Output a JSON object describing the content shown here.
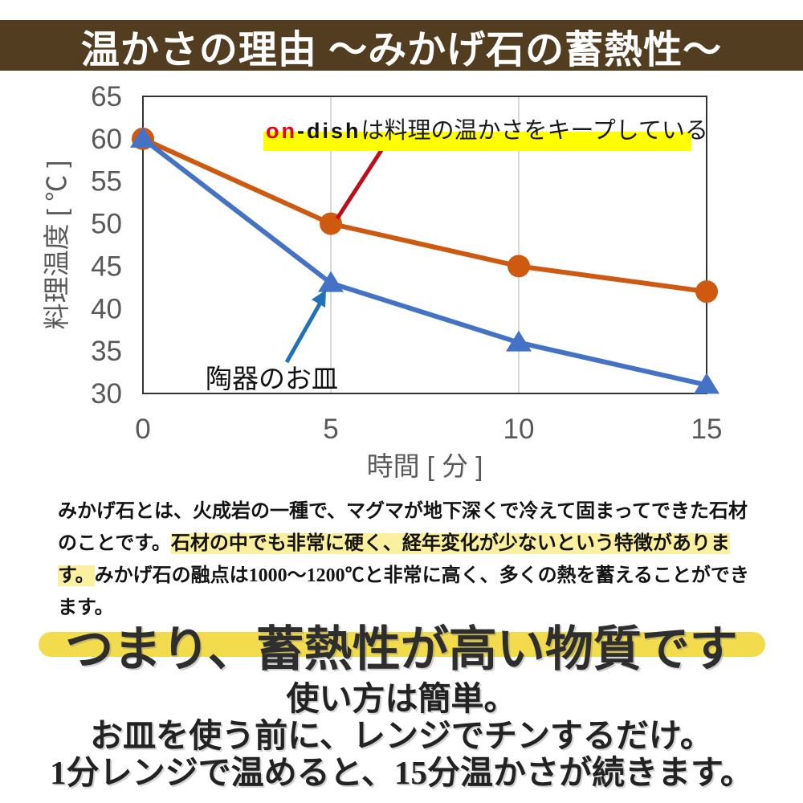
{
  "banner": {
    "title": "温かさの理由 ～みかげ石の蓄熱性～",
    "bg_color": "#533d20",
    "text_color": "#ffffff"
  },
  "chart_data": {
    "type": "line",
    "x": [
      0,
      5,
      10,
      15
    ],
    "series": [
      {
        "name": "on-dish",
        "values": [
          60,
          50,
          45,
          42
        ],
        "color": "#cd5a10",
        "marker": "circle"
      },
      {
        "name": "陶器のお皿",
        "values": [
          60,
          43,
          36,
          31
        ],
        "color": "#4472c4",
        "marker": "triangle"
      }
    ],
    "xlabel": "時間 [ 分 ]",
    "ylabel": "料理温度 [ ℃ ]",
    "xlim": [
      0,
      15
    ],
    "ylim": [
      30,
      65
    ],
    "xticks": [
      0,
      5,
      10,
      15
    ],
    "yticks": [
      30,
      35,
      40,
      45,
      50,
      55,
      60,
      65
    ],
    "grid_x": [
      5,
      10
    ],
    "grid_on": true,
    "legend_position": "none",
    "tick_color": "#595959",
    "border_color": "#333333",
    "grid_color": "#d9d9d9"
  },
  "annotation": {
    "brand_red": "on",
    "brand_black": "-dish",
    "rest": "は料理の温かさをキープしている",
    "red_color": "#e60012",
    "highlight_color": "#ffff00",
    "callout_color": "#c00c18"
  },
  "ceramic_callout": {
    "label": "陶器のお皿",
    "line_color": "#2272b9"
  },
  "paragraph": {
    "highlight_color": "#fbf0a0",
    "segments": [
      {
        "text": "みかげ石とは、火成岩の一種で、マグマが地下深くで冷えて固まってできた石材のことです。",
        "highlight": false
      },
      {
        "text": "石材の中でも非常に硬く、経年変化が少ないという特徴があります。",
        "highlight": true
      },
      {
        "text": "みかげ石の融点は1000～1200℃と非常に高く、多くの熱を蓄えることができます。",
        "highlight": false
      }
    ]
  },
  "headline": {
    "text": "つまり、蓄熱性が高い物質です",
    "pill_color": "#f2dc4e"
  },
  "usage": {
    "lines": [
      "使い方は簡単。",
      "お皿を使う前に、レンジでチンするだけ。",
      "1分レンジで温めると、15分温かさが続きます。"
    ]
  }
}
